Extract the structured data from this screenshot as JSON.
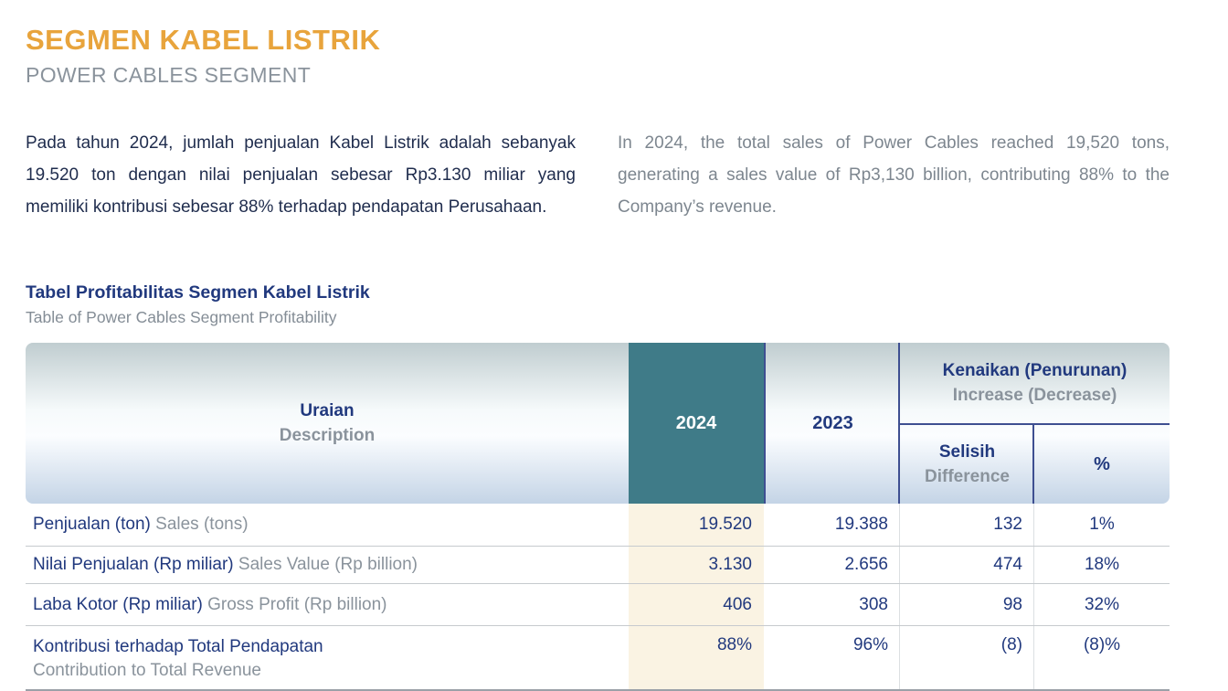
{
  "page": {
    "title_id": "SEGMEN KABEL LISTRIK",
    "title_en": "POWER CABLES SEGMENT",
    "paragraph_id": "Pada tahun 2024, jumlah penjualan Kabel Listrik adalah sebanyak 19.520 ton dengan nilai penjualan sebesar Rp3.130 miliar yang memiliki kontribusi sebesar 88% terhadap pendapatan Perusahaan.",
    "paragraph_en": "In 2024, the total sales of Power Cables reached 19,520 tons, generating a sales value of Rp3,130 billion, contributing 88% to the Company’s revenue."
  },
  "table": {
    "caption_id": "Tabel Profitabilitas Segmen Kabel Listrik",
    "caption_en": "Table of Power Cables Segment Profitability",
    "header": {
      "description_id": "Uraian",
      "description_en": "Description",
      "year_current": "2024",
      "year_prior": "2023",
      "change_group_id": "Kenaikan (Penurunan)",
      "change_group_en": "Increase (Decrease)",
      "difference_id": "Selisih",
      "difference_en": "Difference",
      "percent_label": "%"
    },
    "rows": [
      {
        "label_id": "Penjualan (ton)",
        "label_en": "Sales (tons)",
        "y2024": "19.520",
        "y2023": "19.388",
        "diff": "132",
        "pct": "1%"
      },
      {
        "label_id": "Nilai Penjualan (Rp miliar)",
        "label_en": "Sales Value (Rp billion)",
        "y2024": "3.130",
        "y2023": "2.656",
        "diff": "474",
        "pct": "18%"
      },
      {
        "label_id": "Laba Kotor (Rp miliar)",
        "label_en": "Gross Profit (Rp billion)",
        "y2024": "406",
        "y2023": "308",
        "diff": "98",
        "pct": "32%"
      },
      {
        "label_id": "Kontribusi terhadap Total Pendapatan",
        "label_en": "Contribution to Total Revenue",
        "y2024": "88%",
        "y2023": "96%",
        "diff": "(8)",
        "pct": "(8)%"
      }
    ]
  },
  "colors": {
    "accent_orange": "#E8A43C",
    "navy": "#21397E",
    "teal_header": "#3F7B88",
    "cream_highlight": "#FAF3E3",
    "gray_text": "#8A939C"
  }
}
